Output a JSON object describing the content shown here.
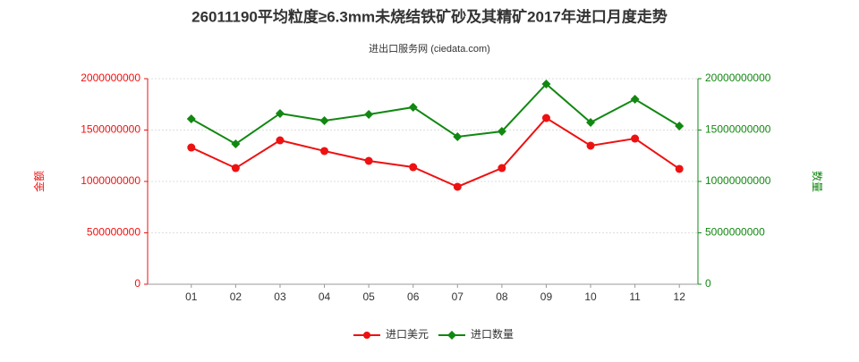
{
  "chart_data": {
    "type": "line",
    "title": "26011190平均粒度≥6.3mm未烧结铁矿砂及其精矿2017年进口月度走势",
    "subtitle": "进出口服务网 (ciedata.com)",
    "ylabel": "金额",
    "y2label": "数量",
    "categories": [
      "01",
      "02",
      "03",
      "04",
      "05",
      "06",
      "07",
      "08",
      "09",
      "10",
      "11",
      "12"
    ],
    "series": [
      {
        "name": "进口美元",
        "color": "#ee1111",
        "values": [
          1330000000,
          1130000000,
          1400000000,
          1296000000,
          1200000000,
          1139000000,
          948000000,
          1130000000,
          1617000000,
          1348000000,
          1417000000,
          1122000000
        ]
      },
      {
        "name": "进口数量",
        "color": "#118811",
        "axis": "y2",
        "values": [
          16090000000,
          13650000000,
          16610000000,
          15910000000,
          16520000000,
          17220000000,
          14350000000,
          14870000000,
          19480000000,
          15740000000,
          18000000000,
          15390000000
        ]
      }
    ],
    "ylim": [
      0,
      2000000000
    ],
    "yticks": [
      0,
      500000000,
      1000000000,
      1500000000,
      2000000000
    ],
    "y2lim": [
      0,
      20000000000
    ],
    "y2ticks": [
      0,
      5000000000,
      10000000000,
      15000000000,
      20000000000
    ],
    "legend": "bottom"
  }
}
